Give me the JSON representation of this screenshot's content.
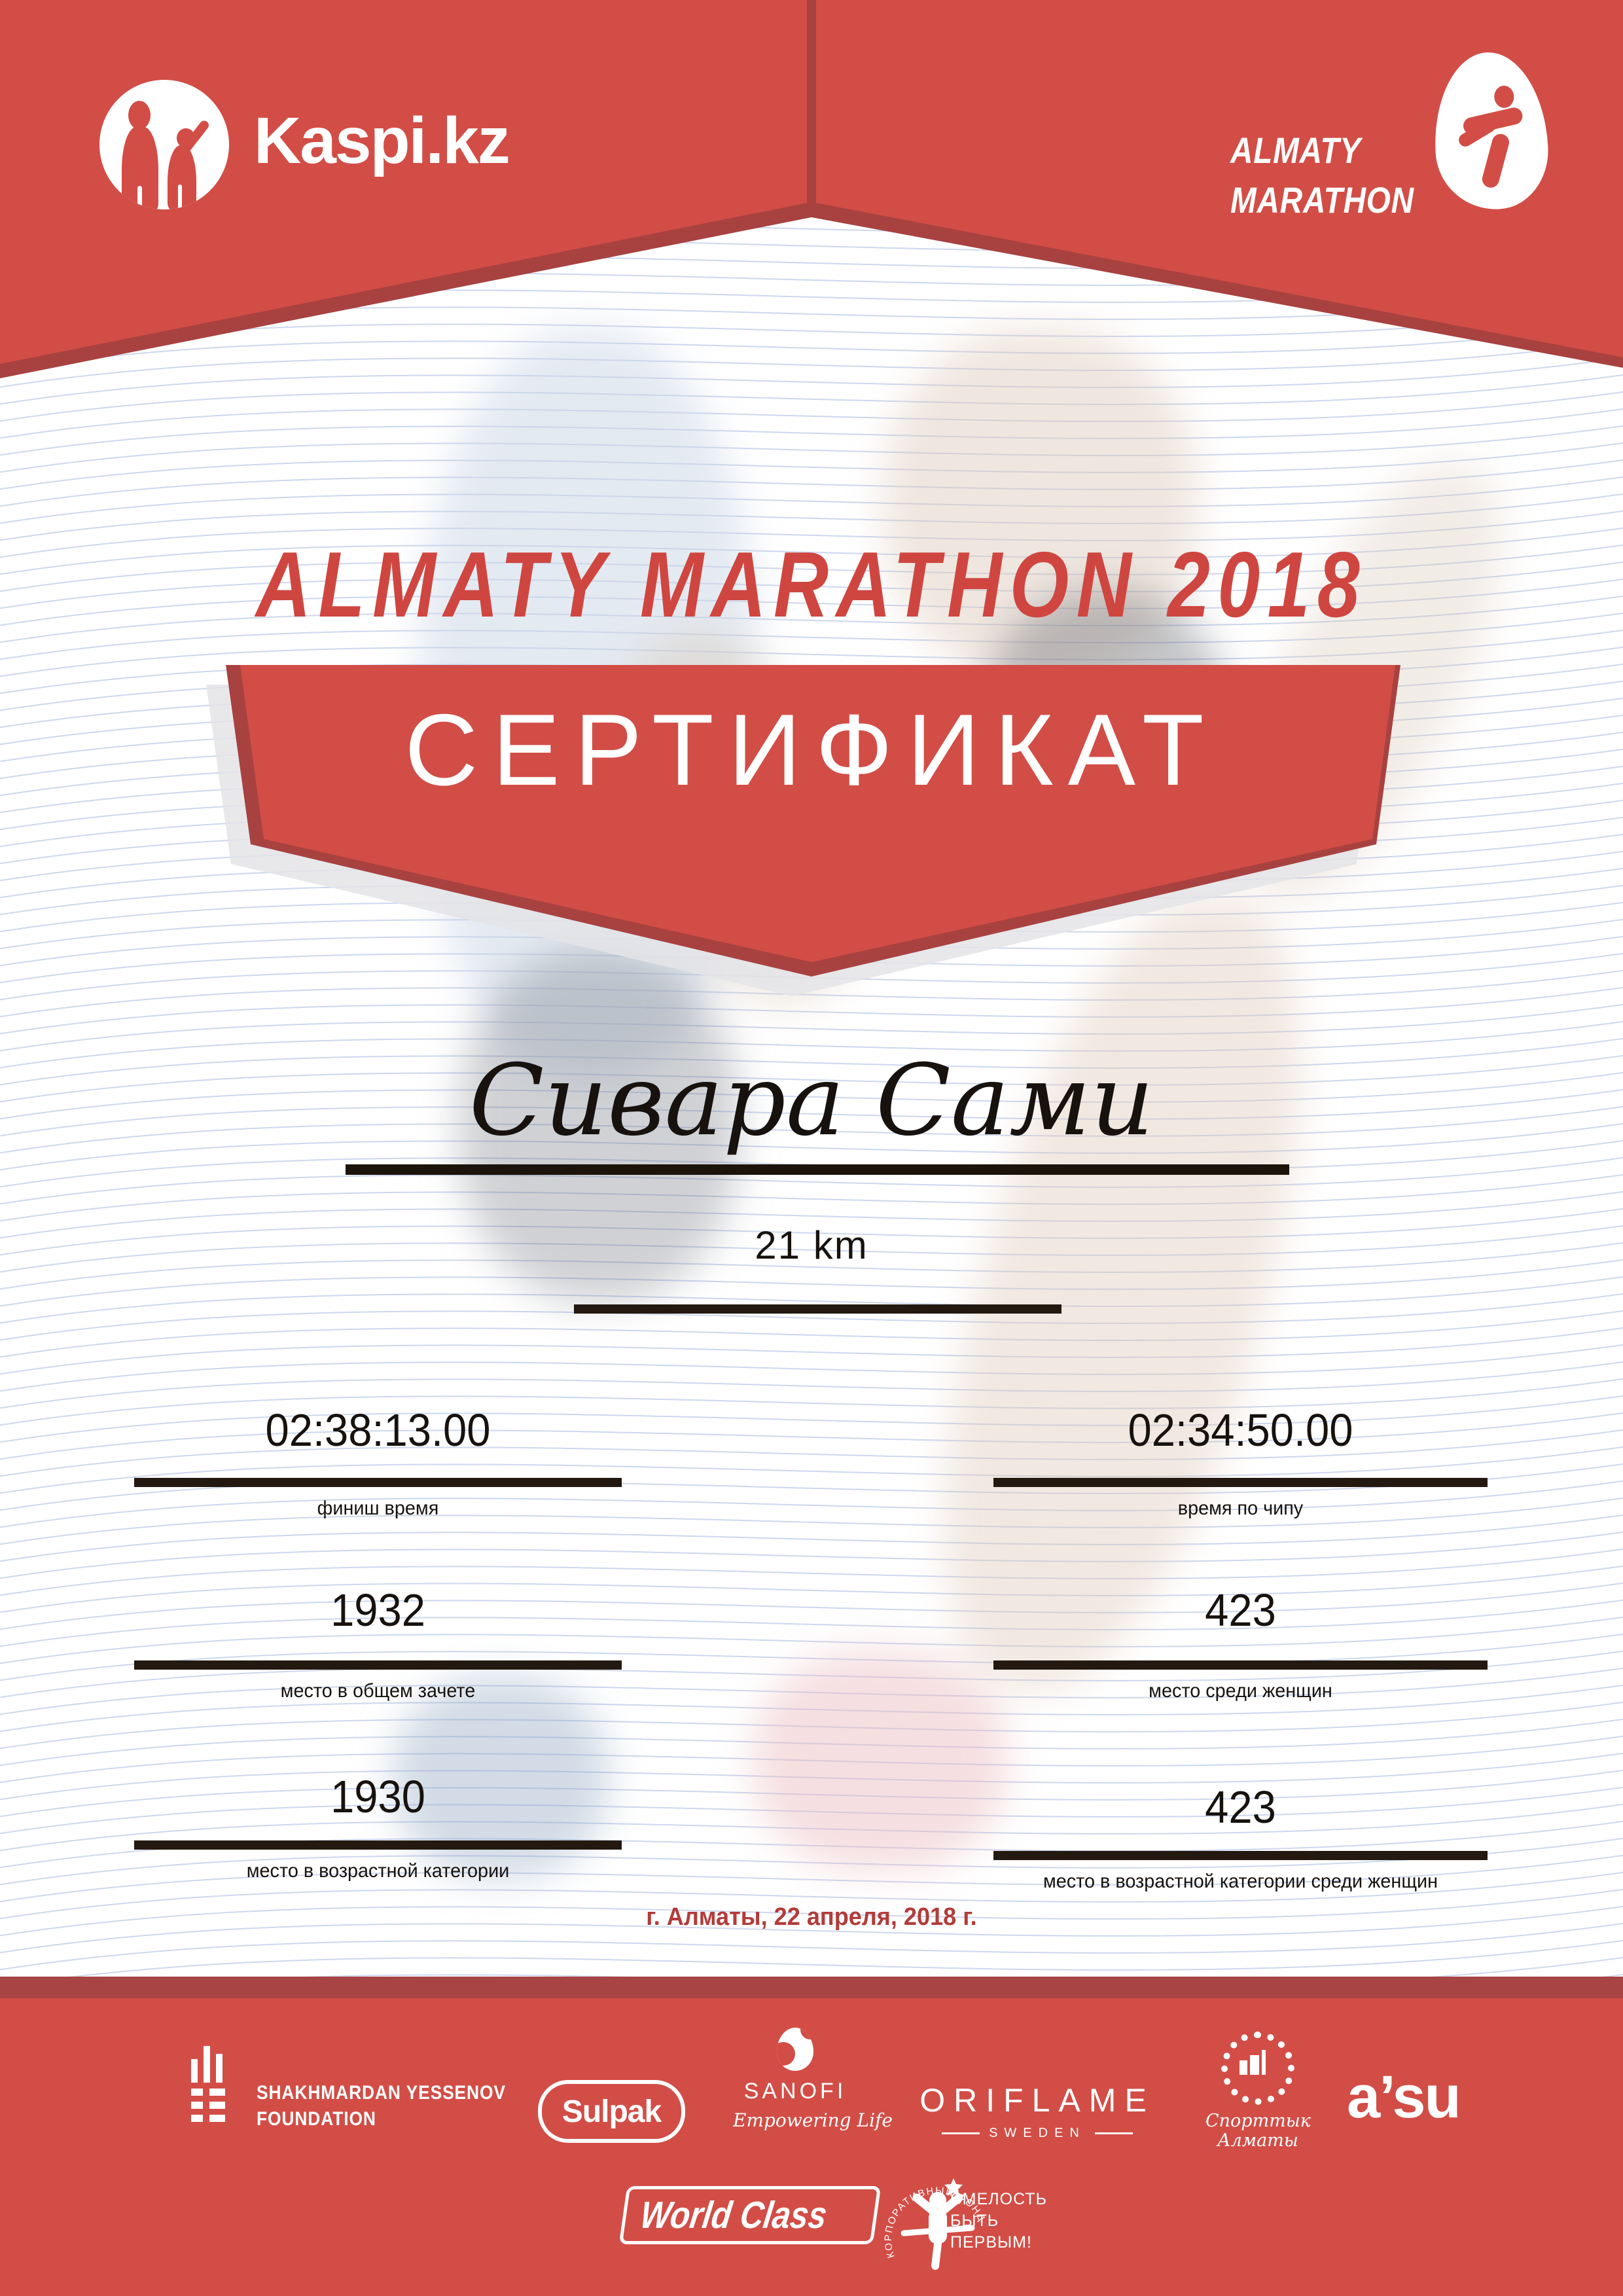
{
  "certificate": {
    "header": {
      "kaspi_wordmark": "Kaspi.kz",
      "almaty_logo_line1": "ALMATY",
      "almaty_logo_line2": "MARATHON"
    },
    "title": "ALMATY MARATHON 2018",
    "banner_label": "СЕРТИФИКАТ",
    "participant_name": "Сивара Сами",
    "distance": "21 km",
    "stats": [
      {
        "value": "02:38:13.00",
        "label": "финиш время"
      },
      {
        "value": "02:34:50.00",
        "label": "время по чипу"
      },
      {
        "value": "1932",
        "label": "место в общем зачете"
      },
      {
        "value": "423",
        "label": "место среди женщин"
      },
      {
        "value": "1930",
        "label": "место в возрастной категории"
      },
      {
        "value": "423",
        "label": "место в возрастной категории среди женщин"
      }
    ],
    "date_location": "г. Алматы, 22 апреля, 2018 г.",
    "footer": {
      "foundation_line1": "SHAKHMARDAN YESSENOV",
      "foundation_line2": "FOUNDATION",
      "sulpak": "Sulpak",
      "sanofi": "SANOFI",
      "sanofi_tagline": "Empowering Life",
      "oriflame": "ORIFLAME",
      "oriflame_sub": "SWEDEN",
      "sport_line1": "Спорттык",
      "sport_line2": "Алматы",
      "asu": "a’su",
      "worldclass": "World Class",
      "fund_arc": "КОРПОРАТИВНЫЙ ФОНД",
      "fund_line1": "СМЕЛОСТЬ",
      "fund_line2": "БЫТЬ",
      "fund_line3": "ПЕРВЫМ!"
    },
    "colors": {
      "red_bright": "#d24d46",
      "red_dark": "#a84240",
      "title_red": "#cf4640",
      "date_red": "#b13c3a",
      "ink": "#17120e",
      "rule_line": "#231910",
      "pattern_line": "#7d96d2"
    }
  }
}
